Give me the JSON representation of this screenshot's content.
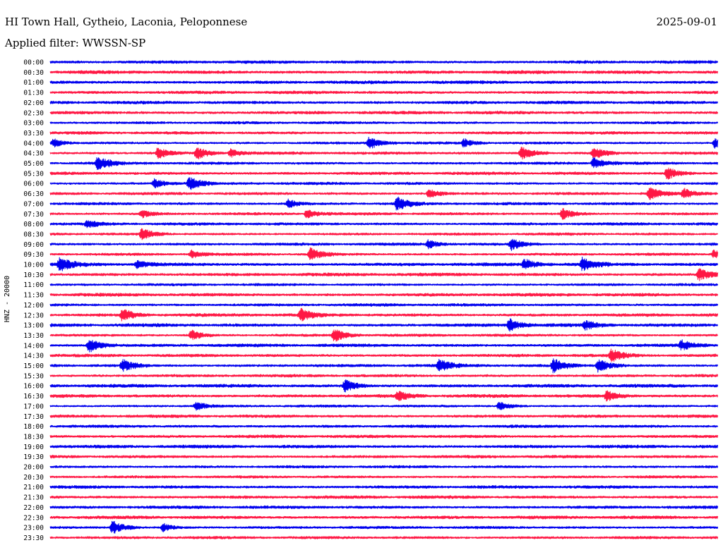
{
  "header": {
    "station": "HI Town Hall, Gytheio, Laconia, Peloponnese",
    "date": "2025-09-01",
    "filter_prefix": "Applied filter:",
    "filter_name": "WWSSN-SP"
  },
  "chart_data": {
    "type": "line",
    "title": "HI Town Hall, Gytheio, Laconia, Peloponnese",
    "ylabel": "HNZ - 20000",
    "xlabel": "",
    "grid": false,
    "trace_colors": [
      "#0000ee",
      "#ff1744"
    ],
    "rows": [
      {
        "time": "00:00",
        "events": []
      },
      {
        "time": "00:30",
        "events": []
      },
      {
        "time": "01:00",
        "events": []
      },
      {
        "time": "01:30",
        "events": []
      },
      {
        "time": "02:00",
        "events": []
      },
      {
        "time": "02:30",
        "events": []
      },
      {
        "time": "03:00",
        "events": []
      },
      {
        "time": "03:30",
        "events": []
      },
      {
        "time": "04:00",
        "events": [
          [
            0.005,
            0.6
          ],
          [
            0.477,
            0.9
          ],
          [
            0.619,
            0.6
          ],
          [
            0.995,
            0.7
          ]
        ]
      },
      {
        "time": "04:30",
        "events": [
          [
            0.161,
            0.8
          ],
          [
            0.219,
            0.9
          ],
          [
            0.27,
            0.6
          ],
          [
            0.705,
            1.0
          ],
          [
            0.813,
            0.9
          ]
        ]
      },
      {
        "time": "05:00",
        "events": [
          [
            0.071,
            1.0
          ],
          [
            0.813,
            0.8
          ]
        ]
      },
      {
        "time": "05:30",
        "events": [
          [
            0.923,
            0.9
          ]
        ]
      },
      {
        "time": "06:00",
        "events": [
          [
            0.156,
            0.7
          ],
          [
            0.208,
            1.0
          ]
        ]
      },
      {
        "time": "06:30",
        "events": [
          [
            0.567,
            0.7
          ],
          [
            0.897,
            0.9
          ],
          [
            0.948,
            0.7
          ]
        ]
      },
      {
        "time": "07:00",
        "events": [
          [
            0.356,
            0.6
          ],
          [
            0.519,
            1.0
          ]
        ]
      },
      {
        "time": "07:30",
        "events": [
          [
            0.137,
            0.6
          ],
          [
            0.384,
            0.6
          ],
          [
            0.767,
            0.8
          ]
        ]
      },
      {
        "time": "08:00",
        "events": [
          [
            0.055,
            0.6
          ]
        ]
      },
      {
        "time": "08:30",
        "events": [
          [
            0.137,
            0.8
          ]
        ]
      },
      {
        "time": "09:00",
        "events": [
          [
            0.566,
            0.6
          ],
          [
            0.69,
            0.9
          ]
        ]
      },
      {
        "time": "09:30",
        "events": [
          [
            0.211,
            0.6
          ],
          [
            0.389,
            0.9
          ],
          [
            0.993,
            0.6
          ]
        ]
      },
      {
        "time": "10:00",
        "events": [
          [
            0.014,
            1.0
          ],
          [
            0.13,
            0.6
          ],
          [
            0.71,
            0.8
          ],
          [
            0.797,
            1.0
          ]
        ]
      },
      {
        "time": "10:30",
        "events": [
          [
            0.971,
            0.9
          ]
        ]
      },
      {
        "time": "11:00",
        "events": []
      },
      {
        "time": "11:30",
        "events": []
      },
      {
        "time": "12:00",
        "events": []
      },
      {
        "time": "12:30",
        "events": [
          [
            0.108,
            0.9
          ],
          [
            0.375,
            0.9
          ]
        ]
      },
      {
        "time": "13:00",
        "events": [
          [
            0.687,
            0.9
          ],
          [
            0.801,
            0.6
          ]
        ]
      },
      {
        "time": "13:30",
        "events": [
          [
            0.211,
            0.8
          ],
          [
            0.425,
            1.0
          ]
        ]
      },
      {
        "time": "14:00",
        "events": [
          [
            0.058,
            1.0
          ],
          [
            0.945,
            0.7
          ]
        ]
      },
      {
        "time": "14:30",
        "events": [
          [
            0.84,
            0.9
          ]
        ]
      },
      {
        "time": "15:00",
        "events": [
          [
            0.108,
            0.9
          ],
          [
            0.582,
            0.9
          ],
          [
            0.753,
            1.0
          ],
          [
            0.82,
            1.0
          ]
        ]
      },
      {
        "time": "15:30",
        "events": []
      },
      {
        "time": "16:00",
        "events": [
          [
            0.441,
            0.9
          ]
        ]
      },
      {
        "time": "16:30",
        "events": [
          [
            0.52,
            0.7
          ],
          [
            0.833,
            0.7
          ]
        ]
      },
      {
        "time": "17:00",
        "events": [
          [
            0.218,
            0.6
          ],
          [
            0.672,
            0.6
          ]
        ]
      },
      {
        "time": "17:30",
        "events": []
      },
      {
        "time": "18:00",
        "events": []
      },
      {
        "time": "18:30",
        "events": []
      },
      {
        "time": "19:00",
        "events": []
      },
      {
        "time": "19:30",
        "events": []
      },
      {
        "time": "20:00",
        "events": []
      },
      {
        "time": "20:30",
        "events": []
      },
      {
        "time": "21:00",
        "events": []
      },
      {
        "time": "21:30",
        "events": []
      },
      {
        "time": "22:00",
        "events": []
      },
      {
        "time": "22:30",
        "events": []
      },
      {
        "time": "23:00",
        "events": [
          [
            0.093,
            1.0
          ],
          [
            0.169,
            0.6
          ]
        ]
      },
      {
        "time": "23:30",
        "events": []
      }
    ]
  }
}
